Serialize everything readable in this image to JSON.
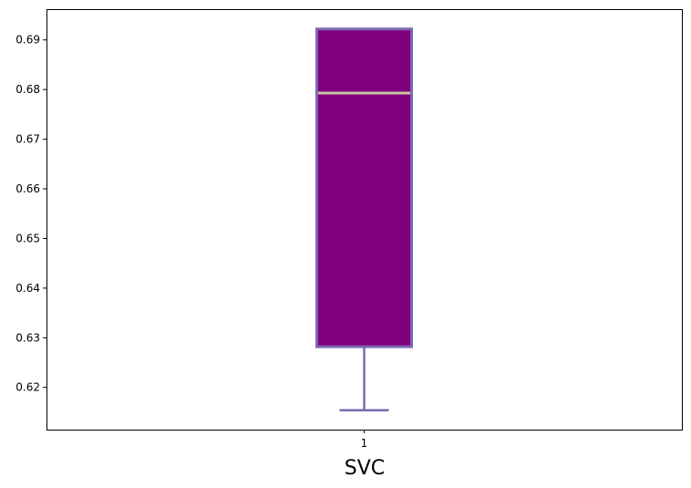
{
  "chart_data": {
    "type": "box",
    "xlabel": "SVC",
    "ylabel": "",
    "title": "",
    "categories": [
      "1"
    ],
    "ylim": [
      0.6115,
      0.6962
    ],
    "yticks": [
      0.62,
      0.63,
      0.64,
      0.65,
      0.66,
      0.67,
      0.68,
      0.69
    ],
    "ytick_labels": [
      "0.62",
      "0.63",
      "0.64",
      "0.65",
      "0.66",
      "0.67",
      "0.68",
      "0.69"
    ],
    "boxes": [
      {
        "category": "1",
        "whisker_low": 0.6154,
        "q1": 0.6282,
        "median": 0.6793,
        "q3": 0.6922,
        "whisker_high": 0.6922
      }
    ],
    "colors": {
      "box_fill": "#800080",
      "box_edge": "#7b68b0",
      "median_line": "#c8c8a0",
      "whisker": "#7b68b0"
    },
    "grid": false
  }
}
